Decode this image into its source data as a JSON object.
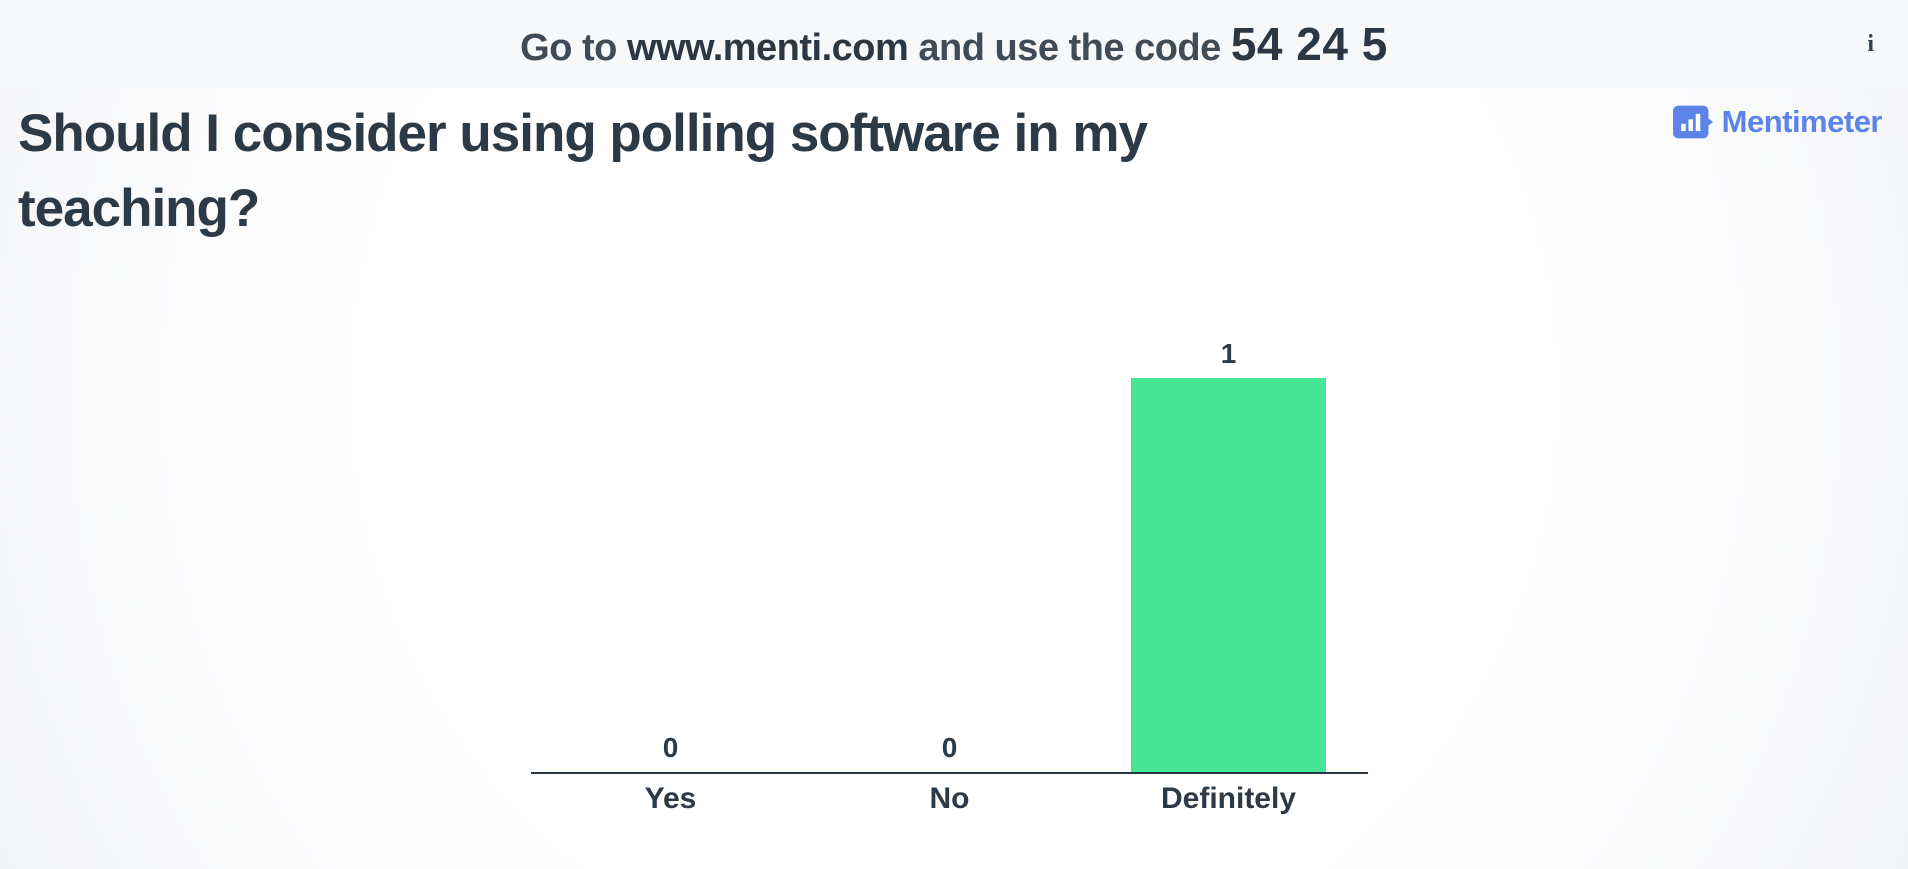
{
  "header": {
    "instruction_prefix": "Go to ",
    "url": "www.menti.com",
    "instruction_middle": " and use the code ",
    "code": "54 24 5",
    "info_icon_glyph": "i"
  },
  "question": {
    "title": "Should I consider using polling software in my teaching?"
  },
  "branding": {
    "logo_text": "Mentimeter"
  },
  "colors": {
    "bar_green": "#45e595",
    "logo_blue": "#5b83e8",
    "text_dark": "#2c3947",
    "header_text": "#3f4b57",
    "axis": "#2b3844",
    "header_bg": "#f7f8f9"
  },
  "chart_data": {
    "type": "bar",
    "categories": [
      "Yes",
      "No",
      "Definitely"
    ],
    "values": [
      0,
      0,
      1
    ],
    "title": "Should I consider using polling software in my teaching?",
    "xlabel": "",
    "ylabel": "",
    "ylim": [
      0,
      1
    ],
    "bar_color": "#45e595",
    "show_value_labels": true,
    "grid": false,
    "legend": false
  }
}
